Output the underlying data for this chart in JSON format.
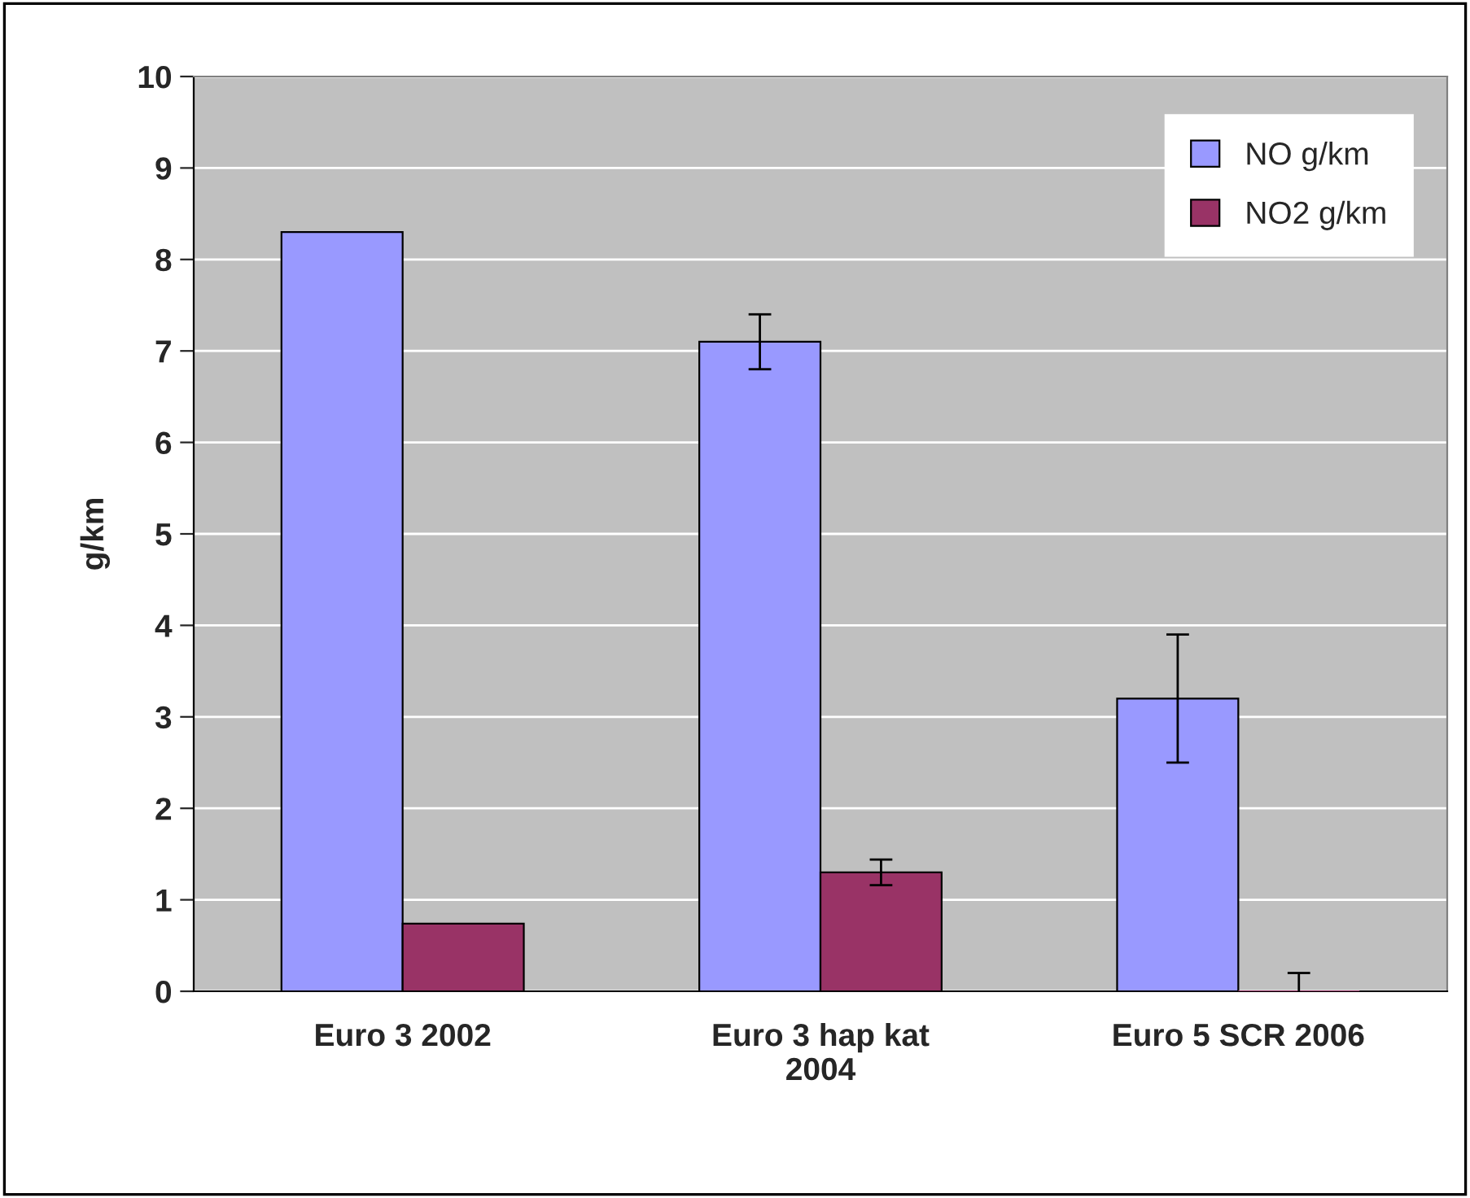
{
  "chart_data": {
    "type": "bar",
    "ylabel": "g/km",
    "categories": [
      "Euro 3 2002",
      "Euro 3 hap kat 2004",
      "Euro 5 SCR 2006"
    ],
    "series": [
      {
        "name": "NO g/km",
        "color": "#9999ff",
        "values": [
          8.3,
          7.1,
          3.2
        ],
        "errors": [
          null,
          0.3,
          0.7
        ]
      },
      {
        "name": "NO2 g/km",
        "color": "#993366",
        "values": [
          0.74,
          1.3,
          0
        ],
        "errors": [
          null,
          0.14,
          0.2
        ]
      }
    ],
    "ylim": [
      0,
      10
    ],
    "yticks": [
      0,
      1,
      2,
      3,
      4,
      5,
      6,
      7,
      8,
      9,
      10
    ],
    "grid": "y",
    "legend": "top right"
  }
}
